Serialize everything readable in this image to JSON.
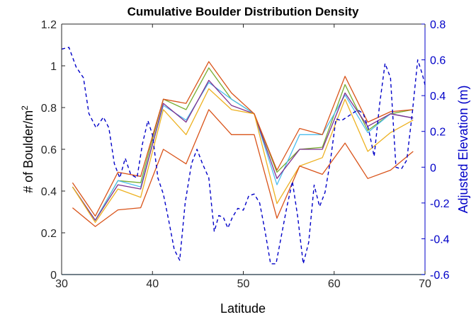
{
  "chart_data": {
    "type": "line",
    "title": "Cumulative Boulder Distribution Density",
    "xlabel": "Latitude",
    "ylabel": "# of Boulder/m",
    "ylabel_superscript": "2",
    "y2label": "Adjusted Elevation (m)",
    "xlim": [
      30,
      70
    ],
    "ylim": [
      0,
      1.2
    ],
    "y2lim": [
      -0.6,
      0.8
    ],
    "x_ticks": [
      "30",
      "40",
      "50",
      "60",
      "70"
    ],
    "y_ticks": [
      "0",
      "0.2",
      "0.4",
      "0.6",
      "0.8",
      "1",
      "1.2"
    ],
    "y2_ticks": [
      "-0.6",
      "-0.4",
      "-0.2",
      "0",
      "0.2",
      "0.4",
      "0.6",
      "0.8"
    ],
    "x": [
      31.2,
      33.7,
      36.2,
      38.7,
      41.2,
      43.7,
      46.2,
      48.7,
      51.2,
      53.7,
      56.2,
      58.7,
      61.2,
      63.7,
      66.2,
      68.7
    ],
    "grid": false,
    "colors": {
      "axis_left": "#262626",
      "axis_right": "#0000c8"
    },
    "series": [
      {
        "axis": "left",
        "style": "solid",
        "color": "#77ac30",
        "values": [
          0.42,
          0.26,
          0.45,
          0.44,
          0.84,
          0.79,
          0.99,
          0.84,
          0.77,
          0.49,
          0.6,
          0.61,
          0.91,
          0.69,
          0.77,
          0.79
        ]
      },
      {
        "axis": "left",
        "style": "solid",
        "color": "#4dbeee",
        "values": [
          0.42,
          0.26,
          0.45,
          0.42,
          0.81,
          0.74,
          0.92,
          0.84,
          0.77,
          0.43,
          0.67,
          0.67,
          0.86,
          0.68,
          0.77,
          0.75
        ]
      },
      {
        "axis": "left",
        "style": "solid",
        "color": "#7e2f8e",
        "values": [
          0.42,
          0.26,
          0.43,
          0.41,
          0.82,
          0.73,
          0.93,
          0.81,
          0.77,
          0.46,
          0.6,
          0.6,
          0.87,
          0.71,
          0.77,
          0.75
        ]
      },
      {
        "axis": "left",
        "style": "solid",
        "color": "#edb120",
        "values": [
          0.42,
          0.25,
          0.41,
          0.37,
          0.79,
          0.67,
          0.89,
          0.79,
          0.77,
          0.34,
          0.52,
          0.56,
          0.84,
          0.59,
          0.68,
          0.74
        ]
      },
      {
        "axis": "left",
        "style": "solid",
        "color": "#d95319",
        "values": [
          0.44,
          0.28,
          0.49,
          0.47,
          0.84,
          0.82,
          1.02,
          0.87,
          0.77,
          0.5,
          0.7,
          0.67,
          0.95,
          0.73,
          0.78,
          0.79
        ]
      },
      {
        "axis": "left",
        "style": "solid",
        "color": "#d95319",
        "values": [
          0.32,
          0.23,
          0.31,
          0.32,
          0.6,
          0.53,
          0.79,
          0.67,
          0.67,
          0.27,
          0.52,
          0.48,
          0.63,
          0.46,
          0.5,
          0.59
        ]
      },
      {
        "axis": "left",
        "style": "solid",
        "color": "#0072bd",
        "x": [
          30,
          70
        ],
        "values": [
          0,
          0
        ]
      },
      {
        "axis": "right",
        "style": "dashed",
        "color": "#0000c8",
        "x": [
          30.0,
          30.8,
          31.6,
          32.4,
          33.0,
          33.8,
          34.6,
          35.2,
          35.8,
          36.4,
          37.0,
          37.6,
          38.3,
          38.9,
          39.5,
          40.0,
          40.6,
          41.2,
          41.8,
          42.4,
          43.0,
          43.6,
          44.3,
          44.9,
          45.5,
          46.2,
          46.8,
          47.3,
          47.8,
          48.3,
          48.8,
          49.4,
          50.0,
          50.6,
          51.2,
          51.8,
          52.4,
          53.0,
          53.6,
          54.2,
          54.8,
          55.4,
          56.0,
          56.6,
          57.2,
          57.8,
          58.4,
          59.0,
          59.6,
          60.2,
          60.8,
          61.4,
          62.0,
          62.6,
          63.2,
          63.8,
          64.4,
          65.0,
          65.6,
          66.2,
          66.8,
          67.4,
          68.0,
          68.6,
          69.2,
          69.7,
          70.0
        ],
        "values": [
          0.66,
          0.67,
          0.56,
          0.5,
          0.3,
          0.22,
          0.28,
          0.22,
          0.02,
          -0.06,
          0.05,
          -0.04,
          -0.06,
          0.13,
          0.26,
          0.18,
          -0.06,
          -0.15,
          -0.3,
          -0.46,
          -0.52,
          -0.2,
          0.02,
          0.1,
          0.02,
          -0.06,
          -0.36,
          -0.27,
          -0.28,
          -0.34,
          -0.28,
          -0.23,
          -0.24,
          -0.16,
          -0.15,
          -0.2,
          -0.36,
          -0.54,
          -0.54,
          -0.38,
          -0.22,
          -0.08,
          -0.28,
          -0.54,
          -0.42,
          -0.1,
          -0.22,
          -0.14,
          0.04,
          0.27,
          0.26,
          0.28,
          0.3,
          0.32,
          0.3,
          0.21,
          0.06,
          0.35,
          0.58,
          0.5,
          0.0,
          -0.01,
          0.04,
          0.3,
          0.6,
          0.52,
          0.46
        ]
      }
    ]
  }
}
